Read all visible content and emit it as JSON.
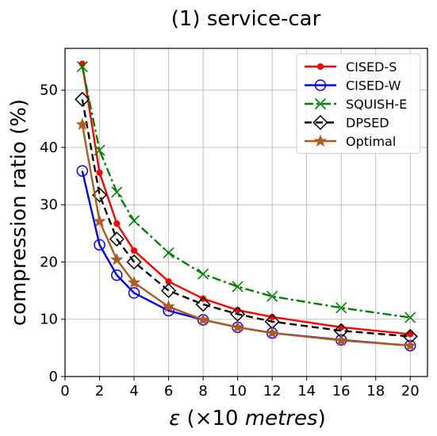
{
  "chart_data": {
    "type": "line",
    "title": "(1) service-car",
    "xlabel": "ε (×10 metres)",
    "ylabel": "compression ratio (%)",
    "xlim": [
      0,
      21
    ],
    "ylim": [
      0,
      57.3
    ],
    "xticks": [
      0,
      2,
      4,
      6,
      8,
      10,
      12,
      14,
      16,
      18,
      20
    ],
    "yticks": [
      0,
      10,
      20,
      30,
      40,
      50
    ],
    "grid": true,
    "legend_position": "top-right",
    "x": [
      1,
      2,
      3,
      4,
      6,
      8,
      10,
      12,
      16,
      20
    ],
    "series": [
      {
        "name": "CISED-S",
        "color": "#ff0000",
        "marker": "dot",
        "linestyle": "solid",
        "values": [
          54.6,
          35.6,
          26.7,
          22.0,
          16.6,
          13.6,
          11.6,
          10.4,
          8.6,
          7.4
        ]
      },
      {
        "name": "CISED-W",
        "color": "#0000ff",
        "marker": "circle",
        "linestyle": "solid",
        "values": [
          35.9,
          23.0,
          17.7,
          14.6,
          11.5,
          9.9,
          8.6,
          7.6,
          6.4,
          5.4
        ]
      },
      {
        "name": "SQUISH-E",
        "color": "#008000",
        "marker": "x",
        "linestyle": "dashdot",
        "values": [
          54.1,
          39.5,
          32.2,
          27.2,
          21.6,
          17.9,
          15.7,
          14.0,
          12.0,
          10.3
        ]
      },
      {
        "name": "DPSED",
        "color": "#000000",
        "marker": "diamond",
        "linestyle": "dashed",
        "values": [
          48.4,
          31.7,
          24.0,
          20.0,
          15.0,
          12.6,
          10.9,
          9.6,
          8.0,
          7.0
        ]
      },
      {
        "name": "Optimal",
        "color": "#b05a1e",
        "marker": "star",
        "linestyle": "solid",
        "values": [
          44.0,
          27.1,
          20.4,
          16.4,
          12.2,
          9.9,
          8.6,
          7.6,
          6.3,
          5.4
        ]
      }
    ]
  }
}
